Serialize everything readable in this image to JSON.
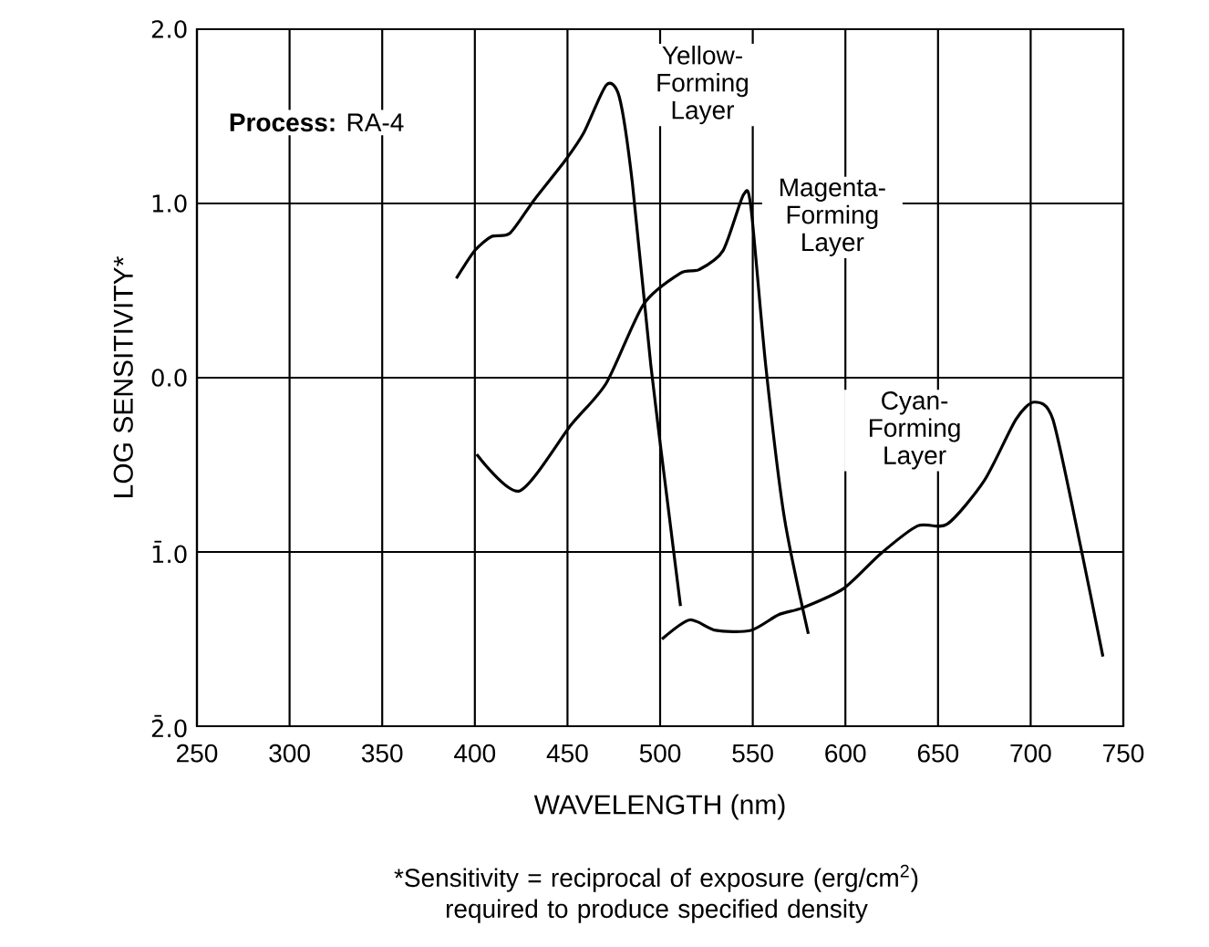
{
  "chart_data": {
    "type": "line",
    "xlabel": "WAVELENGTH (nm)",
    "ylabel": "LOG SENSITIVITY*",
    "xlim": [
      250,
      750
    ],
    "xticks": [
      250,
      300,
      350,
      400,
      450,
      500,
      550,
      600,
      650,
      700,
      750
    ],
    "ylim": [
      -2,
      2
    ],
    "yticks": [
      {
        "value": 2,
        "label": "2.0"
      },
      {
        "value": 1,
        "label": "1.0"
      },
      {
        "value": 0,
        "label": "0.0"
      },
      {
        "value": -1,
        "label": "1̄.0"
      },
      {
        "value": -2,
        "label": "2̄.0"
      }
    ],
    "grid": true,
    "marker": "none",
    "line_style": "solid",
    "annotations": [
      "**Process:** RA-4",
      "*Sensitivity = reciprocal of exposure (erg/cm$^{2}$) required to produce specified density"
    ],
    "series": [
      {
        "name": "Yellow-Forming Layer",
        "color": "#000000",
        "x": [
          390,
          400,
          409,
          419,
          432,
          449,
          459,
          471,
          478,
          485,
          495,
          505,
          511
        ],
        "values": [
          0.57,
          0.73,
          0.81,
          0.83,
          1.02,
          1.25,
          1.41,
          1.68,
          1.61,
          1.12,
          0.07,
          -0.8,
          -1.31
        ]
      },
      {
        "name": "Magenta-Forming Layer",
        "color": "#000000",
        "x": [
          401,
          424,
          452,
          471,
          491,
          511,
          521,
          534,
          545,
          549,
          557,
          567,
          580
        ],
        "values": [
          -0.44,
          -0.65,
          -0.27,
          -0.03,
          0.42,
          0.6,
          0.62,
          0.73,
          1.05,
          0.98,
          0.07,
          -0.8,
          -1.47
        ]
      },
      {
        "name": "Cyan-Forming Layer",
        "color": "#000000",
        "x": [
          501,
          516,
          530,
          549,
          564,
          577,
          599,
          619,
          639,
          655,
          675,
          692,
          702,
          712,
          727,
          739
        ],
        "values": [
          -1.5,
          -1.39,
          -1.45,
          -1.45,
          -1.36,
          -1.32,
          -1.21,
          -1.01,
          -0.85,
          -0.84,
          -0.59,
          -0.24,
          -0.14,
          -0.24,
          -0.97,
          -1.6
        ]
      }
    ]
  }
}
